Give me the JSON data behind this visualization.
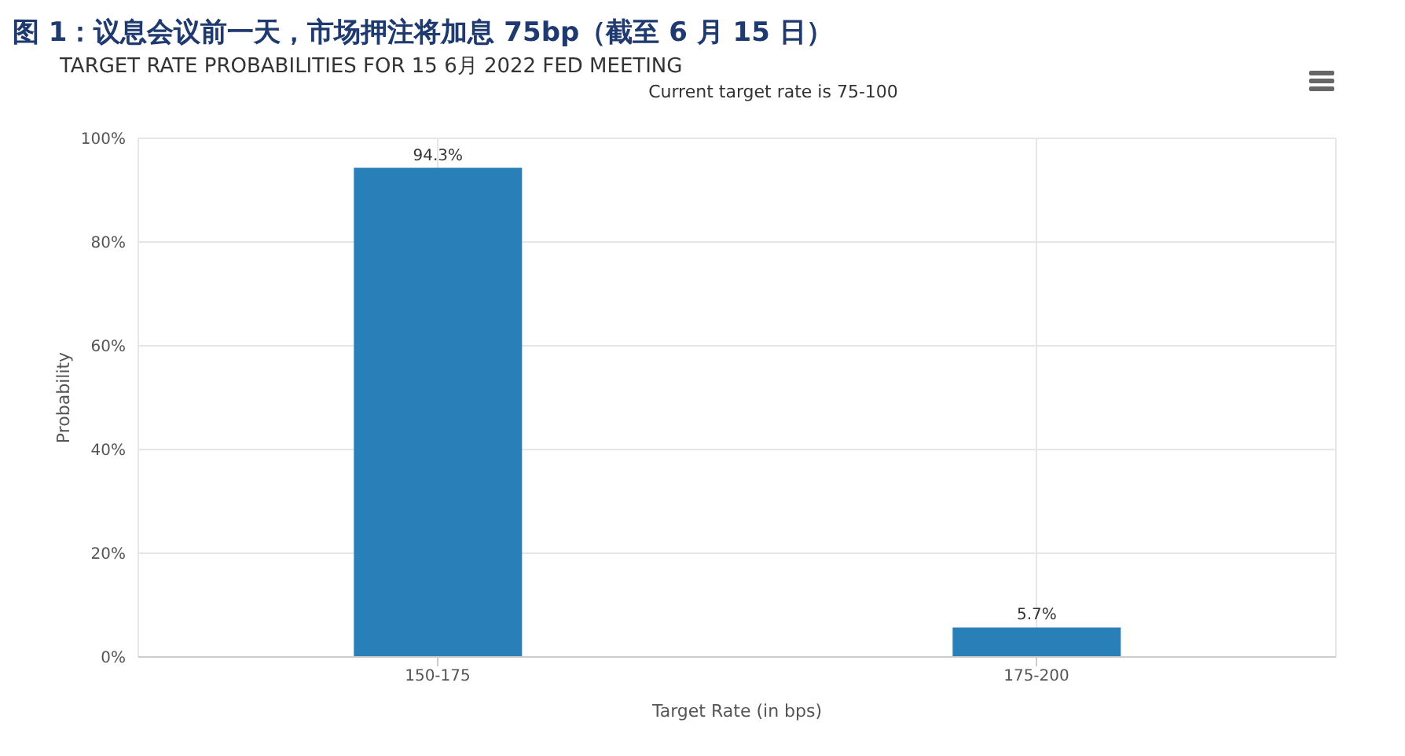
{
  "chart_data": {
    "type": "bar",
    "title": "图 1：议息会议前一天，市场押注将加息 75bp（截至 6 月 15 日）",
    "subtitle": "TARGET RATE PROBABILITIES FOR 15 6月 2022 FED MEETING",
    "annotations": [
      "Current target rate is 75-100"
    ],
    "xlabel": "Target Rate (in bps)",
    "ylabel": "Probability",
    "categories": [
      "150-175",
      "175-200"
    ],
    "values": [
      94.3,
      5.7
    ],
    "value_labels": [
      "94.3%",
      "5.7%"
    ],
    "color": "#2980b9",
    "ylim": [
      0,
      100
    ],
    "yticks": [
      {
        "value": 0,
        "label": "0%"
      },
      {
        "value": 20,
        "label": "20%"
      },
      {
        "value": 40,
        "label": "40%"
      },
      {
        "value": 60,
        "label": "60%"
      },
      {
        "value": 80,
        "label": "80%"
      },
      {
        "value": 100,
        "label": "100%"
      }
    ],
    "grid": true
  }
}
